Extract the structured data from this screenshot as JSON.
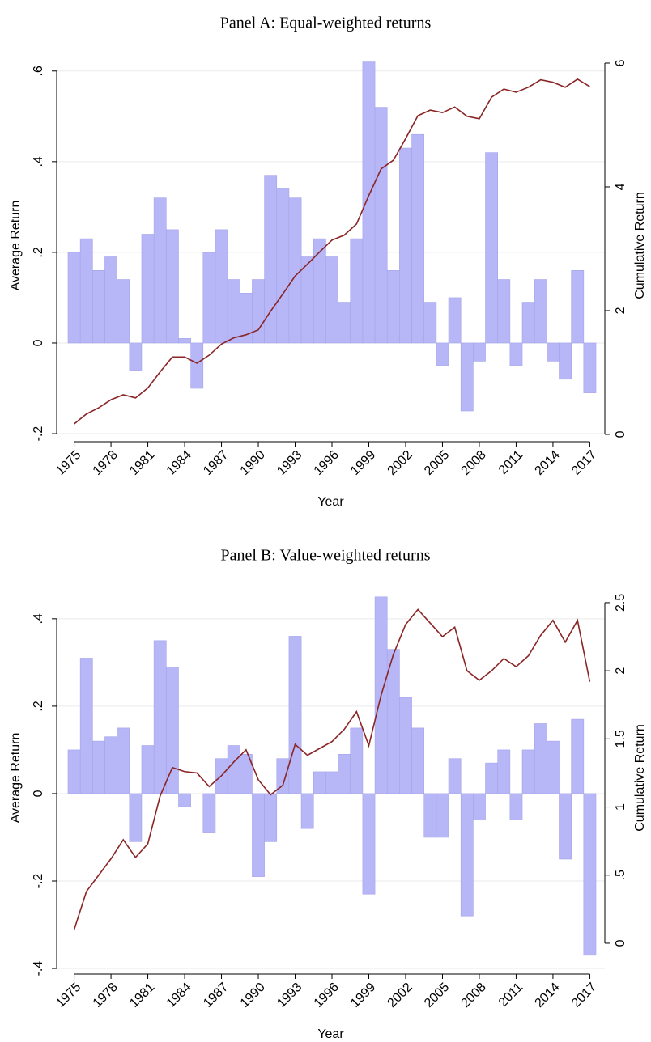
{
  "chart_data": [
    {
      "type": "combo",
      "title": "Panel A: Equal-weighted returns",
      "xlabel": "Year",
      "ylabel": "Average Return",
      "y2label": "Cumulative Return",
      "x": [
        1975,
        1976,
        1977,
        1978,
        1979,
        1980,
        1981,
        1982,
        1983,
        1984,
        1985,
        1986,
        1987,
        1988,
        1989,
        1990,
        1991,
        1992,
        1993,
        1994,
        1995,
        1996,
        1997,
        1998,
        1999,
        2000,
        2001,
        2002,
        2003,
        2004,
        2005,
        2006,
        2007,
        2008,
        2009,
        2010,
        2011,
        2012,
        2013,
        2014,
        2015,
        2016,
        2017
      ],
      "series": [
        {
          "type": "bar",
          "color": "#b7b7f7",
          "values": [
            0.2,
            0.23,
            0.16,
            0.19,
            0.14,
            -0.06,
            0.24,
            0.32,
            0.25,
            0.01,
            -0.1,
            0.2,
            0.25,
            0.14,
            0.11,
            0.14,
            0.37,
            0.34,
            0.32,
            0.19,
            0.23,
            0.19,
            0.09,
            0.23,
            0.62,
            0.52,
            0.16,
            0.43,
            0.46,
            0.09,
            -0.05,
            0.1,
            -0.15,
            -0.04,
            0.42,
            0.14,
            -0.05,
            0.09,
            0.14,
            -0.04,
            -0.08,
            0.16,
            -0.11
          ]
        },
        {
          "type": "line",
          "axis": "y2",
          "color": "#8b2525",
          "values": [
            0.17,
            0.33,
            0.43,
            0.56,
            0.64,
            0.59,
            0.75,
            1.01,
            1.25,
            1.25,
            1.15,
            1.28,
            1.46,
            1.56,
            1.61,
            1.69,
            1.99,
            2.27,
            2.56,
            2.75,
            2.95,
            3.14,
            3.22,
            3.4,
            3.86,
            4.29,
            4.43,
            4.78,
            5.15,
            5.24,
            5.2,
            5.29,
            5.14,
            5.1,
            5.45,
            5.58,
            5.53,
            5.61,
            5.73,
            5.69,
            5.61,
            5.74,
            5.62
          ]
        }
      ],
      "xlim": [
        1974.5,
        2017.5
      ],
      "xticks": [
        1975,
        1978,
        1981,
        1984,
        1987,
        1990,
        1993,
        1996,
        1999,
        2002,
        2005,
        2008,
        2011,
        2014,
        2017
      ],
      "ylim": [
        -0.216,
        0.646
      ],
      "yticks": [
        {
          "value": 0.6,
          "label": ".6"
        },
        {
          "value": 0.4,
          "label": ".4"
        },
        {
          "value": 0.2,
          "label": ".2"
        },
        0,
        {
          "value": -0.2,
          "label": "-.2"
        }
      ],
      "y2lim": [
        -0.105,
        6.209
      ],
      "y2ticks": [
        0,
        2,
        4,
        6
      ],
      "grid": true
    },
    {
      "type": "combo",
      "title": "Panel B: Value-weighted returns",
      "xlabel": "Year",
      "ylabel": "Average Return",
      "y2label": "Cumulative Return",
      "x": [
        1975,
        1976,
        1977,
        1978,
        1979,
        1980,
        1981,
        1982,
        1983,
        1984,
        1985,
        1986,
        1987,
        1988,
        1989,
        1990,
        1991,
        1992,
        1993,
        1994,
        1995,
        1996,
        1997,
        1998,
        1999,
        2000,
        2001,
        2002,
        2003,
        2004,
        2005,
        2006,
        2007,
        2008,
        2009,
        2010,
        2011,
        2012,
        2013,
        2014,
        2015,
        2016,
        2017
      ],
      "series": [
        {
          "type": "bar",
          "color": "#b7b7f7",
          "values": [
            0.1,
            0.31,
            0.12,
            0.13,
            0.15,
            -0.11,
            0.11,
            0.35,
            0.29,
            -0.03,
            0,
            -0.09,
            0.08,
            0.11,
            0.09,
            -0.19,
            -0.11,
            0.08,
            0.36,
            -0.08,
            0.05,
            0.05,
            0.09,
            0.15,
            -0.23,
            0.45,
            0.33,
            0.22,
            0.15,
            -0.1,
            -0.1,
            0.08,
            -0.28,
            -0.06,
            0.07,
            0.1,
            -0.06,
            0.1,
            0.16,
            0.12,
            -0.15,
            0.17,
            -0.37
          ]
        },
        {
          "type": "line",
          "axis": "y2",
          "color": "#8b2525",
          "values": [
            0.1,
            0.38,
            0.5,
            0.62,
            0.76,
            0.63,
            0.73,
            1.08,
            1.29,
            1.26,
            1.25,
            1.15,
            1.23,
            1.33,
            1.42,
            1.2,
            1.09,
            1.16,
            1.46,
            1.38,
            1.43,
            1.48,
            1.57,
            1.7,
            1.45,
            1.82,
            2.12,
            2.34,
            2.45,
            2.35,
            2.25,
            2.32,
            2.0,
            1.93,
            2.0,
            2.09,
            2.03,
            2.11,
            2.26,
            2.37,
            2.21,
            2.37,
            1.92
          ]
        }
      ],
      "xlim": [
        1974.5,
        2017.5
      ],
      "xticks": [
        1975,
        1978,
        1981,
        1984,
        1987,
        1990,
        1993,
        1996,
        1999,
        2002,
        2005,
        2008,
        2011,
        2014,
        2017
      ],
      "ylim": [
        -0.411,
        0.483
      ],
      "yticks": [
        {
          "value": 0.4,
          "label": ".4"
        },
        {
          "value": 0.2,
          "label": ".2"
        },
        0,
        {
          "value": -0.2,
          "label": "-.2"
        },
        {
          "value": -0.4,
          "label": "-.4"
        }
      ],
      "y2lim": [
        -0.22,
        2.648
      ],
      "y2ticks": [
        0,
        {
          "value": 0.5,
          "label": ".5"
        },
        1,
        1.5,
        2,
        2.5
      ],
      "grid": true
    }
  ]
}
